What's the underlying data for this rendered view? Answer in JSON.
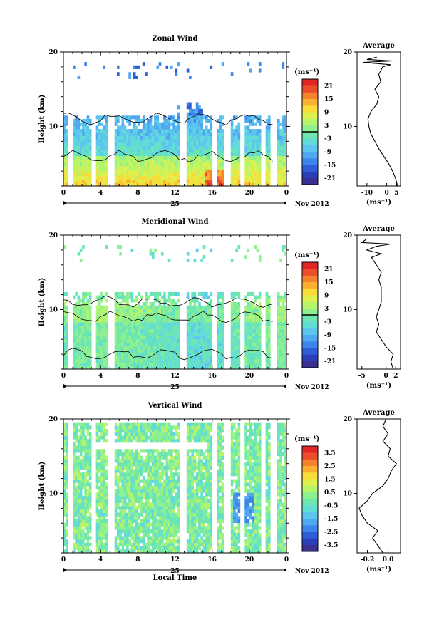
{
  "colorbar_palette": [
    "#3b2f8f",
    "#2a3fb8",
    "#2f5fd8",
    "#3f86ea",
    "#4fa8f0",
    "#5cc6ee",
    "#62dcd6",
    "#6ee6b0",
    "#8ef08e",
    "#b6f46a",
    "#dff04e",
    "#f8dc3a",
    "#fbb030",
    "#f7822c",
    "#ee4d2c",
    "#e22626"
  ],
  "chart_data": [
    {
      "type": "heatmap",
      "title": "Zonal Wind",
      "ylabel": "Height (km)",
      "ylim": [
        2,
        20
      ],
      "y_ticks": [
        "20",
        "10"
      ],
      "x_ticks": [
        "0",
        "4",
        "8",
        "12",
        "16",
        "20",
        "0"
      ],
      "xlim": [
        0,
        24
      ],
      "date_label": "25",
      "month_label": "Nov 2012",
      "colorbar": {
        "unit": "(ms⁻¹)",
        "ticks": [
          "21",
          "15",
          "9",
          "3",
          "-3",
          "-9",
          "-15",
          "-21"
        ],
        "zero_line_value": 0,
        "range": [
          -24,
          24
        ]
      },
      "profile": {
        "title": "Average",
        "x_ticks": [
          "-10",
          "0",
          "5"
        ],
        "xlim": [
          -15,
          7
        ],
        "xlabel": "(ms⁻¹)",
        "y_ticks": [
          "20",
          "10"
        ],
        "points": [
          [
            5.5,
            2
          ],
          [
            4.5,
            3
          ],
          [
            3,
            4
          ],
          [
            1,
            5
          ],
          [
            -1.5,
            6
          ],
          [
            -4,
            7
          ],
          [
            -6,
            8
          ],
          [
            -8,
            9
          ],
          [
            -9,
            10
          ],
          [
            -9.5,
            11
          ],
          [
            -8,
            12
          ],
          [
            -5,
            13
          ],
          [
            -4,
            14
          ],
          [
            -6,
            15
          ],
          [
            -3,
            16
          ],
          [
            -4,
            17
          ],
          [
            -2,
            18
          ],
          [
            2,
            18.3
          ],
          [
            -12,
            18.6
          ],
          [
            3,
            18.8
          ],
          [
            -10,
            19
          ],
          [
            -5,
            19.3
          ]
        ]
      }
    },
    {
      "type": "heatmap",
      "title": "Meridional Wind",
      "ylabel": "Height (km)",
      "ylim": [
        2,
        20
      ],
      "y_ticks": [
        "20",
        "10"
      ],
      "x_ticks": [
        "0",
        "4",
        "8",
        "12",
        "16",
        "20",
        "0"
      ],
      "xlim": [
        0,
        24
      ],
      "date_label": "25",
      "month_label": "Nov 2012",
      "colorbar": {
        "unit": "(ms⁻¹)",
        "ticks": [
          "21",
          "15",
          "9",
          "3",
          "-3",
          "-9",
          "-15",
          "-21"
        ],
        "zero_line_value": 0,
        "range": [
          -24,
          24
        ]
      },
      "profile": {
        "title": "Average",
        "x_ticks": [
          "-5",
          "0",
          "2"
        ],
        "xlim": [
          -6,
          3
        ],
        "xlabel": "(ms⁻¹)",
        "y_ticks": [
          "20",
          "10"
        ],
        "points": [
          [
            1.5,
            2
          ],
          [
            1,
            3
          ],
          [
            1.5,
            4
          ],
          [
            0,
            5
          ],
          [
            -1,
            6
          ],
          [
            -2,
            7
          ],
          [
            -1.5,
            8
          ],
          [
            -2,
            9
          ],
          [
            -1.5,
            10
          ],
          [
            -1,
            11
          ],
          [
            -1,
            12
          ],
          [
            -1,
            13
          ],
          [
            -1.5,
            14
          ],
          [
            -1,
            15
          ],
          [
            -2,
            16
          ],
          [
            -3,
            17
          ],
          [
            -1,
            17.5
          ],
          [
            -4,
            18
          ],
          [
            -2,
            18.5
          ],
          [
            1,
            18.8
          ],
          [
            -5,
            19
          ],
          [
            -4,
            19.5
          ]
        ]
      }
    },
    {
      "type": "heatmap",
      "title": "Vertical Wind",
      "ylabel": "Height (km)",
      "xlabel": "Local Time",
      "ylim": [
        2,
        20
      ],
      "y_ticks": [
        "20",
        "10"
      ],
      "x_ticks": [
        "0",
        "4",
        "8",
        "12",
        "16",
        "20",
        "0"
      ],
      "xlim": [
        0,
        24
      ],
      "date_label": "25",
      "month_label": "Nov 2012",
      "colorbar": {
        "unit": "(ms⁻¹)",
        "ticks": [
          "3.5",
          "2.5",
          "1.5",
          "0.5",
          "-0.5",
          "-1.5",
          "-2.5",
          "-3.5"
        ],
        "range": [
          -4,
          4
        ]
      },
      "profile": {
        "title": "Average",
        "x_ticks": [
          "-0.2",
          "0.0"
        ],
        "xlim": [
          -0.3,
          0.12
        ],
        "xlabel": "(ms⁻¹)",
        "y_ticks": [
          "20",
          "10"
        ],
        "points": [
          [
            -0.05,
            2
          ],
          [
            -0.1,
            3
          ],
          [
            -0.15,
            4
          ],
          [
            -0.1,
            5
          ],
          [
            -0.2,
            6
          ],
          [
            -0.25,
            7
          ],
          [
            -0.28,
            8
          ],
          [
            -0.2,
            9
          ],
          [
            -0.15,
            10
          ],
          [
            -0.05,
            11
          ],
          [
            0.0,
            12
          ],
          [
            0.03,
            13
          ],
          [
            0.08,
            14
          ],
          [
            0.0,
            15
          ],
          [
            0.02,
            16
          ],
          [
            -0.05,
            17
          ],
          [
            0.0,
            18
          ],
          [
            -0.05,
            19
          ],
          [
            -0.02,
            20
          ]
        ]
      }
    }
  ]
}
